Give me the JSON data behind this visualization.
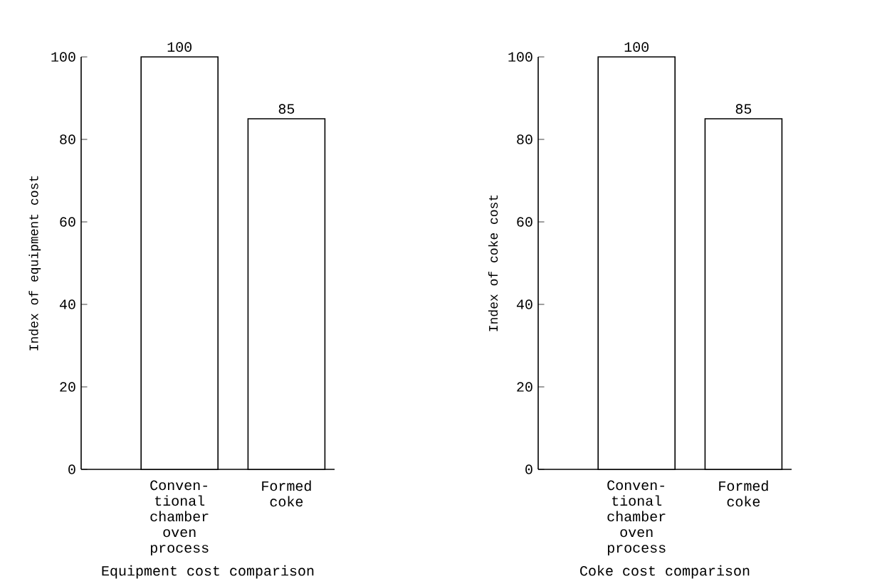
{
  "chart_data": [
    {
      "type": "bar",
      "categories": [
        "Conven-tional chamber oven process",
        "Formed coke"
      ],
      "values": [
        100,
        85
      ],
      "color": "#ffffff",
      "ylim": [
        0,
        100
      ],
      "yticks": [
        0,
        20,
        40,
        60,
        80,
        100
      ],
      "ylabel": "Index of equipment cost",
      "xlabel": "Equipment cost comparison",
      "data_labels": true
    },
    {
      "type": "bar",
      "categories": [
        "Conven-tional chamber oven process",
        "Formed coke"
      ],
      "values": [
        100,
        85
      ],
      "color": "#ffffff",
      "ylim": [
        0,
        100
      ],
      "yticks": [
        0,
        20,
        40,
        60,
        80,
        100
      ],
      "ylabel": "Index of coke cost",
      "xlabel": "Coke cost comparison",
      "data_labels": true
    }
  ]
}
